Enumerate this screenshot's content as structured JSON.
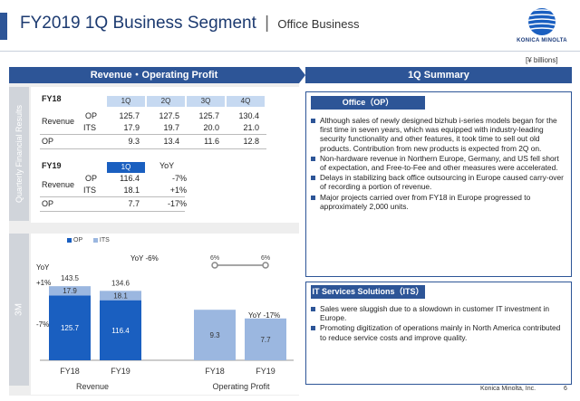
{
  "title": {
    "main": "FY2019 1Q Business Segment",
    "separator": "|",
    "sub": "Office Business",
    "logo_text": "KONICA MINOLTA"
  },
  "unit": "[¥ billions]",
  "left_panel": {
    "header": "Revenue・Operating Profit",
    "side_tab_quarterly": "Quarterly Financial Results",
    "side_tab_3m": "3M"
  },
  "fy18_table": {
    "label": "FY18",
    "columns": [
      "1Q",
      "2Q",
      "3Q",
      "4Q"
    ],
    "revenue_label": "Revenue",
    "rows": [
      {
        "label": "OP",
        "values": [
          "125.7",
          "127.5",
          "125.7",
          "130.4"
        ]
      },
      {
        "label": "ITS",
        "values": [
          "17.9",
          "19.7",
          "20.0",
          "21.0"
        ]
      },
      {
        "label": "OP",
        "values": [
          "9.3",
          "13.4",
          "11.6",
          "12.8"
        ]
      }
    ]
  },
  "fy19_table": {
    "label": "FY19",
    "columns": [
      "1Q",
      "YoY"
    ],
    "revenue_label": "Revenue",
    "rows": [
      {
        "label": "OP",
        "values": [
          "116.4",
          "-7%"
        ]
      },
      {
        "label": "ITS",
        "values": [
          "18.1",
          "+1%"
        ]
      },
      {
        "label": "OP",
        "values": [
          "7.7",
          "-17%"
        ]
      }
    ]
  },
  "chart_data": {
    "type": "bar",
    "legend": [
      "OP",
      "ITS"
    ],
    "colors": {
      "OP": "#1a5fc0",
      "ITS": "#9bb7e0"
    },
    "groups": [
      {
        "name": "Revenue",
        "categories": [
          "FY18",
          "FY19"
        ],
        "series": [
          {
            "name": "OP",
            "values": [
              125.7,
              116.4
            ]
          },
          {
            "name": "ITS",
            "values": [
              17.9,
              18.1
            ]
          }
        ],
        "totals": [
          "143.5",
          "134.6"
        ],
        "yoy_total": "YoY  -6%",
        "yoy_label": "YoY",
        "yoy_its": "+1%",
        "yoy_op": "-7%"
      },
      {
        "name": "Operating Profit",
        "categories": [
          "FY18",
          "FY19"
        ],
        "values": [
          9.3,
          7.7
        ],
        "yoy": "YoY  -17%",
        "margin_line": [
          "6%",
          "6%"
        ]
      }
    ]
  },
  "right_panel": {
    "header": "1Q Summary",
    "office_section": {
      "title": "Office（OP）",
      "bullets": [
        "Although sales of newly designed bizhub i-series models began for the first time in seven years, which was equipped with industry-leading security functionality and other features, it took time to sell out old products. Contribution from new products is expected from 2Q on.",
        "Non-hardware revenue in Northern Europe, Germany, and US fell short of expectation, and Free-to-Fee and other measures were accelerated.",
        "Delays in stabilizing back office outsourcing in Europe caused carry-over of recording a portion of revenue.",
        "Major projects carried over from FY18 in Europe progressed to approximately 2,000 units."
      ]
    },
    "its_section": {
      "title": "IT Services Solutions（ITS）",
      "bullets": [
        "Sales were sluggish due to a slowdown in customer IT investment in Europe.",
        "Promoting digitization of operations mainly in North America contributed to reduce service costs and improve quality."
      ]
    }
  },
  "footer": {
    "company": "Konica Minolta, Inc.",
    "page": "6"
  }
}
